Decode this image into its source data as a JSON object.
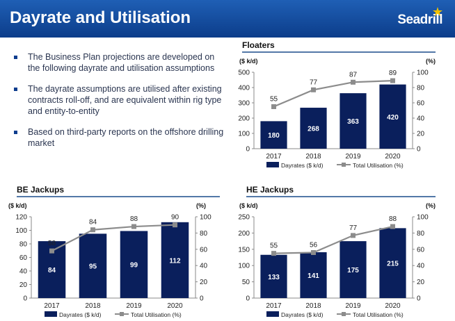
{
  "header": {
    "title": "Dayrate and Utilisation",
    "logo_text": "Seadrill"
  },
  "bullets": [
    "The Business Plan projections are developed on the following dayrate and utilisation assumptions",
    "The dayrate assumptions are utilised after existing contracts roll-off, and are equivalent within rig type and entity-to-entity",
    "Based on third-party reports on the offshore drilling market"
  ],
  "colors": {
    "header": "#0c3d8a",
    "bar": "#0a1f5c",
    "line": "#8c8c8c",
    "rule": "#1a4c8a"
  },
  "chart_data": [
    {
      "title": "Floaters",
      "type": "bar",
      "categories": [
        "2017",
        "2018",
        "2019",
        "2020"
      ],
      "ylabel_left": "($ k/d)",
      "ylabel_right": "(%)",
      "ylim_left": [
        0,
        500
      ],
      "ylim_right": [
        0,
        100
      ],
      "yticks_left": [
        0,
        100,
        200,
        300,
        400,
        500
      ],
      "yticks_right": [
        0,
        20,
        40,
        60,
        80,
        100
      ],
      "series": [
        {
          "name": "Dayrates ($ k/d)",
          "type": "bar",
          "values": [
            180,
            268,
            363,
            420
          ]
        },
        {
          "name": "Total Utilisation (%)",
          "type": "line",
          "values": [
            55,
            77,
            87,
            89
          ]
        }
      ]
    },
    {
      "title": "BE Jackups",
      "type": "bar",
      "categories": [
        "2017",
        "2018",
        "2019",
        "2020"
      ],
      "ylabel_left": "($ k/d)",
      "ylabel_right": "(%)",
      "ylim_left": [
        0,
        120
      ],
      "ylim_right": [
        0,
        100
      ],
      "yticks_left": [
        0,
        20,
        40,
        60,
        80,
        100,
        120
      ],
      "yticks_right": [
        0,
        20,
        40,
        60,
        80,
        100
      ],
      "series": [
        {
          "name": "Dayrates ($ k/d)",
          "type": "bar",
          "values": [
            84,
            95,
            99,
            112
          ]
        },
        {
          "name": "Total Utilisation (%)",
          "type": "line",
          "values": [
            58,
            84,
            88,
            90
          ]
        }
      ]
    },
    {
      "title": "HE Jackups",
      "type": "bar",
      "categories": [
        "2017",
        "2018",
        "2019",
        "2020"
      ],
      "ylabel_left": "($ k/d)",
      "ylabel_right": "(%)",
      "ylim_left": [
        0,
        250
      ],
      "ylim_right": [
        0,
        100
      ],
      "yticks_left": [
        0,
        50,
        100,
        150,
        200,
        250
      ],
      "yticks_right": [
        0,
        20,
        40,
        60,
        80,
        100
      ],
      "series": [
        {
          "name": "Dayrates ($ k/d)",
          "type": "bar",
          "values": [
            133,
            141,
            175,
            215
          ]
        },
        {
          "name": "Total Utilisation (%)",
          "type": "line",
          "values": [
            55,
            56,
            77,
            88
          ]
        }
      ]
    }
  ]
}
